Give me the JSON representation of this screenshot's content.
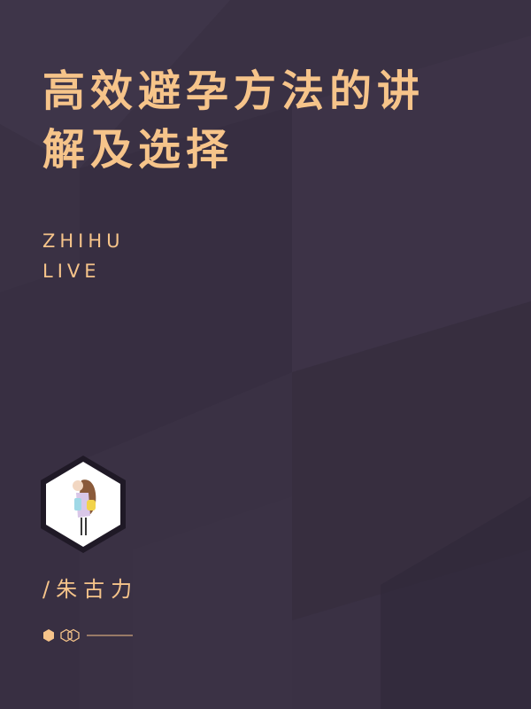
{
  "cover": {
    "title_line1": "高效避孕方法的讲",
    "title_line2": "解及选择",
    "brand_line1": "ZHIHU",
    "brand_line2": "LIVE",
    "author": "/朱古力"
  },
  "avatar": {
    "icon": "girl-illustration-icon"
  },
  "colors": {
    "background": "#3a3144",
    "accent": "#f6c48a",
    "avatar_frame": "#1f1926",
    "avatar_fill": "#ffffff"
  }
}
